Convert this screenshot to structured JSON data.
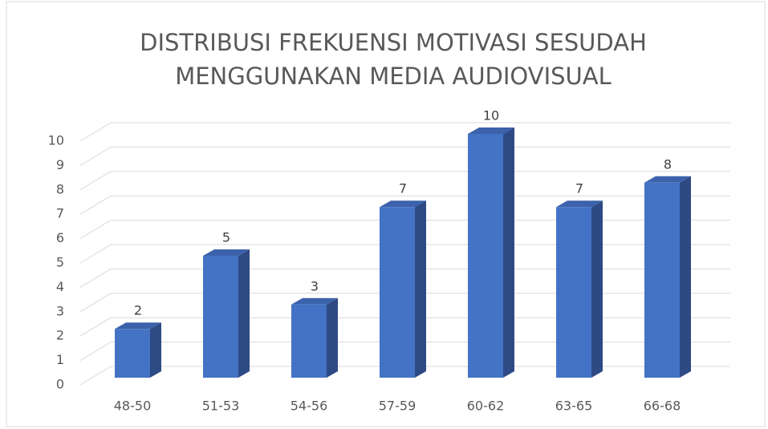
{
  "chart_data": {
    "type": "bar3d",
    "title": [
      "DISTRIBUSI FREKUENSI MOTIVASI SESUDAH",
      "MENGGUNAKAN MEDIA AUDIOVISUAL"
    ],
    "categories": [
      "48-50",
      "51-53",
      "54-56",
      "57-59",
      "60-62",
      "63-65",
      "66-68"
    ],
    "values": [
      2,
      5,
      3,
      7,
      10,
      7,
      8
    ],
    "color": "#4472c4",
    "ylim": [
      0,
      10
    ],
    "yticks": [
      0,
      1,
      2,
      3,
      4,
      5,
      6,
      7,
      8,
      9,
      10
    ],
    "grid": true
  }
}
